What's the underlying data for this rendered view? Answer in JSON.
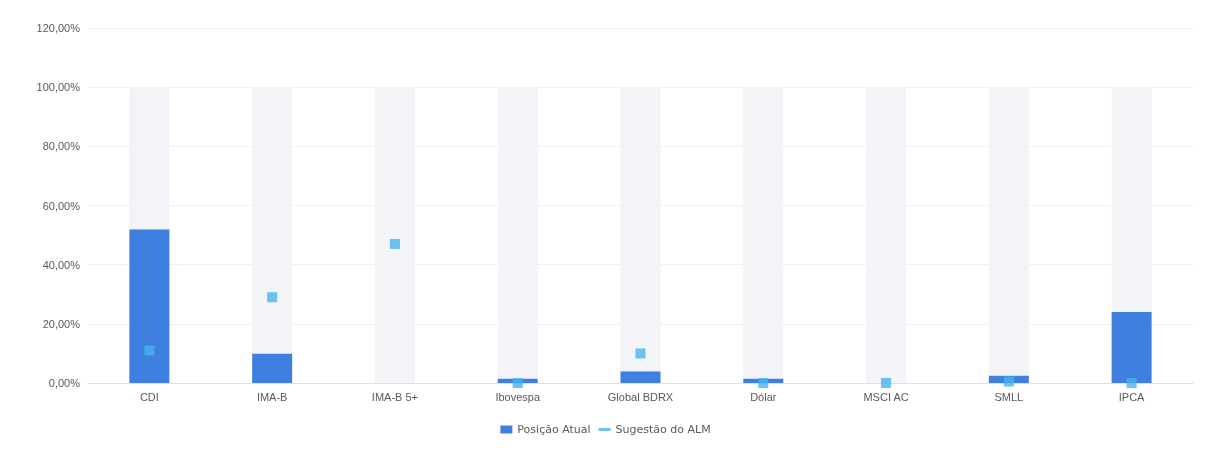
{
  "chart_data": {
    "type": "bar",
    "categories": [
      "CDI",
      "IMA-B",
      "IMA-B 5+",
      "Ibovespa",
      "Global BDRX",
      "Dólar",
      "MSCI AC",
      "SMLL",
      "IPCA"
    ],
    "series": [
      {
        "name": "Posição Atual",
        "color": "#3f7fe0",
        "values": [
          52,
          10,
          0,
          1.5,
          4,
          1.5,
          0,
          2.5,
          24
        ]
      },
      {
        "color": "#f3f4f7",
        "values": [
          48,
          90,
          100,
          98.5,
          96,
          98.5,
          100,
          97.5,
          76
        ]
      },
      {
        "name": "Sugestão do ALM",
        "type": "scatter",
        "marker": "square",
        "color": "#45b4ef",
        "values": [
          11,
          29,
          47,
          0,
          10,
          0,
          0,
          0.5,
          0
        ]
      }
    ],
    "ylim": [
      0,
      120
    ],
    "yticks": [
      {
        "value": 0,
        "label": "0,00%"
      },
      {
        "value": 20,
        "label": "20,00%"
      },
      {
        "value": 40,
        "label": "40,00%"
      },
      {
        "value": 60,
        "label": "60,00%"
      },
      {
        "value": 80,
        "label": "80,00%"
      },
      {
        "value": 100,
        "label": "100,00%"
      },
      {
        "value": 120,
        "label": "120,00%"
      }
    ],
    "stacked": true,
    "grid": "y",
    "legend": "bottom"
  }
}
